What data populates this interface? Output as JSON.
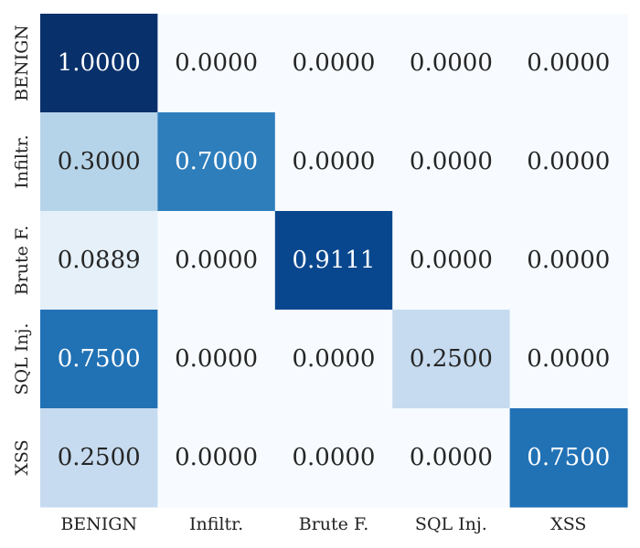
{
  "chart_data": {
    "type": "heatmap",
    "title": "",
    "xlabel": "",
    "ylabel": "",
    "x_categories": [
      "BENIGN",
      "Infiltr.",
      "Brute F.",
      "SQL Inj.",
      "XSS"
    ],
    "y_categories": [
      "BENIGN",
      "Infiltr.",
      "Brute F.",
      "SQL Inj.",
      "XSS"
    ],
    "values": [
      [
        1.0,
        0.0,
        0.0,
        0.0,
        0.0
      ],
      [
        0.3,
        0.7,
        0.0,
        0.0,
        0.0
      ],
      [
        0.0889,
        0.0,
        0.9111,
        0.0,
        0.0
      ],
      [
        0.75,
        0.0,
        0.0,
        0.25,
        0.0
      ],
      [
        0.25,
        0.0,
        0.0,
        0.0,
        0.75
      ]
    ],
    "value_labels": [
      [
        "1.0000",
        "0.0000",
        "0.0000",
        "0.0000",
        "0.0000"
      ],
      [
        "0.3000",
        "0.7000",
        "0.0000",
        "0.0000",
        "0.0000"
      ],
      [
        "0.0889",
        "0.0000",
        "0.9111",
        "0.0000",
        "0.0000"
      ],
      [
        "0.7500",
        "0.0000",
        "0.0000",
        "0.2500",
        "0.0000"
      ],
      [
        "0.2500",
        "0.0000",
        "0.0000",
        "0.0000",
        "0.7500"
      ]
    ],
    "value_range": [
      0,
      1
    ],
    "colormap": "Blues",
    "colorbar": false,
    "grid": false
  }
}
